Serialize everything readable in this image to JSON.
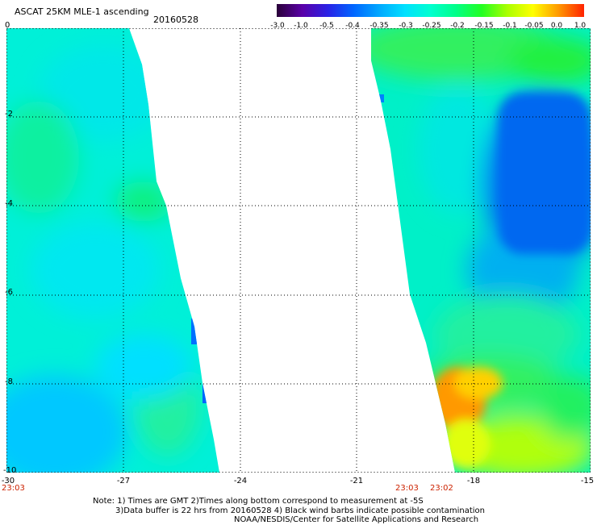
{
  "header": {
    "title": "ASCAT 25KM MLE-1 ascending",
    "date": "20160528"
  },
  "colorbar": {
    "ticks": [
      "-3.0",
      "-1.0",
      "-0.5",
      "-0.4",
      "-0.35",
      "-0.3",
      "-0.25",
      "-0.2",
      "-0.15",
      "-0.1",
      "-0.05",
      "0.0",
      "1.0"
    ],
    "colors": [
      "#2a0038",
      "#5a00a8",
      "#2a22e6",
      "#0066ff",
      "#00a8ff",
      "#00e0ff",
      "#00ffd0",
      "#00ff88",
      "#22ff22",
      "#aaff00",
      "#ffff00",
      "#ff9900",
      "#ff2200"
    ]
  },
  "map": {
    "x_axis_labels": [
      "-30",
      "-27",
      "-24",
      "-21",
      "-18",
      "-15"
    ],
    "y_axis_labels": [
      "0",
      "-2",
      "-4",
      "-6",
      "-8",
      "-10"
    ],
    "lon_range": [
      -30,
      -15
    ],
    "lat_range": [
      -10,
      0
    ],
    "swath_times": [
      "23:03",
      "23:03",
      "23:02"
    ]
  },
  "notes": {
    "line1": "Note: 1) Times are GMT 2)Times along bottom correspond to measurement at -5S",
    "line2": "3)Data buffer is 22 hrs from 20160528 4) Black wind barbs indicate possible contamination",
    "line3": "NOAA/NESDIS/Center for Satellite Applications and Research"
  }
}
